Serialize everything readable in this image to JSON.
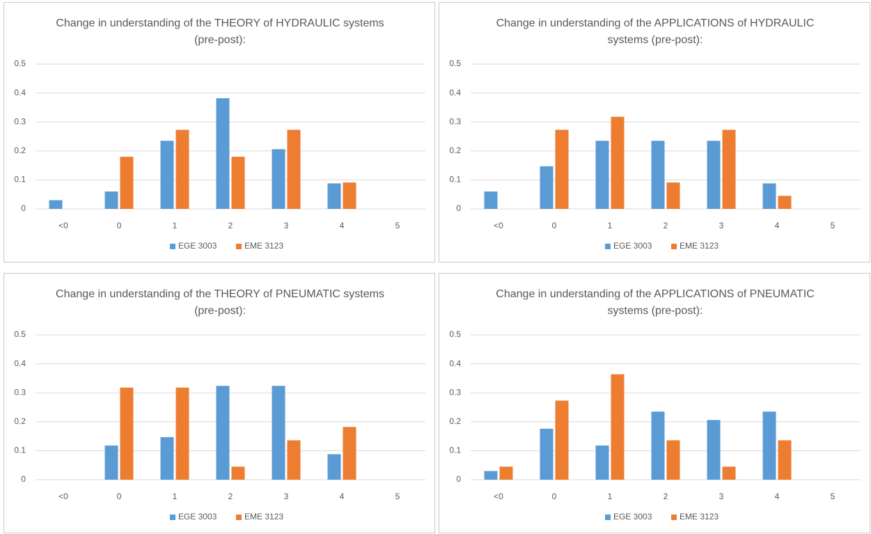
{
  "chart_data": [
    {
      "type": "bar",
      "title": "Change in understanding of the THEORY of HYDRAULIC systems (pre-post):",
      "categories": [
        "<0",
        "0",
        "1",
        "2",
        "3",
        "4",
        "5"
      ],
      "series": [
        {
          "name": "EGE 3003",
          "color": "#5b9bd5",
          "values": [
            0.03,
            0.06,
            0.235,
            0.382,
            0.206,
            0.088,
            0
          ]
        },
        {
          "name": "EME 3123",
          "color": "#ed7d31",
          "values": [
            0,
            0.18,
            0.273,
            0.18,
            0.273,
            0.091,
            0
          ]
        }
      ],
      "ylim": [
        0,
        0.5
      ],
      "yticks": [
        0,
        0.1,
        0.2,
        0.3,
        0.4,
        0.5
      ],
      "grid": true,
      "legend": "bottom"
    },
    {
      "type": "bar",
      "title": "Change in understanding of the APPLICATIONS of HYDRAULIC systems (pre-post):",
      "categories": [
        "<0",
        "0",
        "1",
        "2",
        "3",
        "4",
        "5"
      ],
      "series": [
        {
          "name": "EGE 3003",
          "color": "#5b9bd5",
          "values": [
            0.06,
            0.147,
            0.235,
            0.235,
            0.235,
            0.088,
            0
          ]
        },
        {
          "name": "EME 3123",
          "color": "#ed7d31",
          "values": [
            0,
            0.273,
            0.318,
            0.091,
            0.273,
            0.045,
            0
          ]
        }
      ],
      "ylim": [
        0,
        0.5
      ],
      "yticks": [
        0,
        0.1,
        0.2,
        0.3,
        0.4,
        0.5
      ],
      "grid": true,
      "legend": "bottom"
    },
    {
      "type": "bar",
      "title": "Change in understanding of the THEORY of PNEUMATIC systems (pre-post):",
      "categories": [
        "<0",
        "0",
        "1",
        "2",
        "3",
        "4",
        "5"
      ],
      "series": [
        {
          "name": "EGE 3003",
          "color": "#5b9bd5",
          "values": [
            0,
            0.118,
            0.147,
            0.324,
            0.324,
            0.088,
            0
          ]
        },
        {
          "name": "EME 3123",
          "color": "#ed7d31",
          "values": [
            0,
            0.318,
            0.318,
            0.045,
            0.136,
            0.182,
            0
          ]
        }
      ],
      "ylim": [
        0,
        0.5
      ],
      "yticks": [
        0,
        0.1,
        0.2,
        0.3,
        0.4,
        0.5
      ],
      "grid": true,
      "legend": "bottom"
    },
    {
      "type": "bar",
      "title": "Change in understanding of the APPLICATIONS of PNEUMATIC systems (pre-post):",
      "categories": [
        "<0",
        "0",
        "1",
        "2",
        "3",
        "4",
        "5"
      ],
      "series": [
        {
          "name": "EGE 3003",
          "color": "#5b9bd5",
          "values": [
            0.03,
            0.176,
            0.118,
            0.235,
            0.206,
            0.235,
            0
          ]
        },
        {
          "name": "EME 3123",
          "color": "#ed7d31",
          "values": [
            0.045,
            0.273,
            0.364,
            0.136,
            0.045,
            0.136,
            0
          ]
        }
      ],
      "ylim": [
        0,
        0.5
      ],
      "yticks": [
        0,
        0.1,
        0.2,
        0.3,
        0.4,
        0.5
      ],
      "grid": true,
      "legend": "bottom"
    }
  ]
}
